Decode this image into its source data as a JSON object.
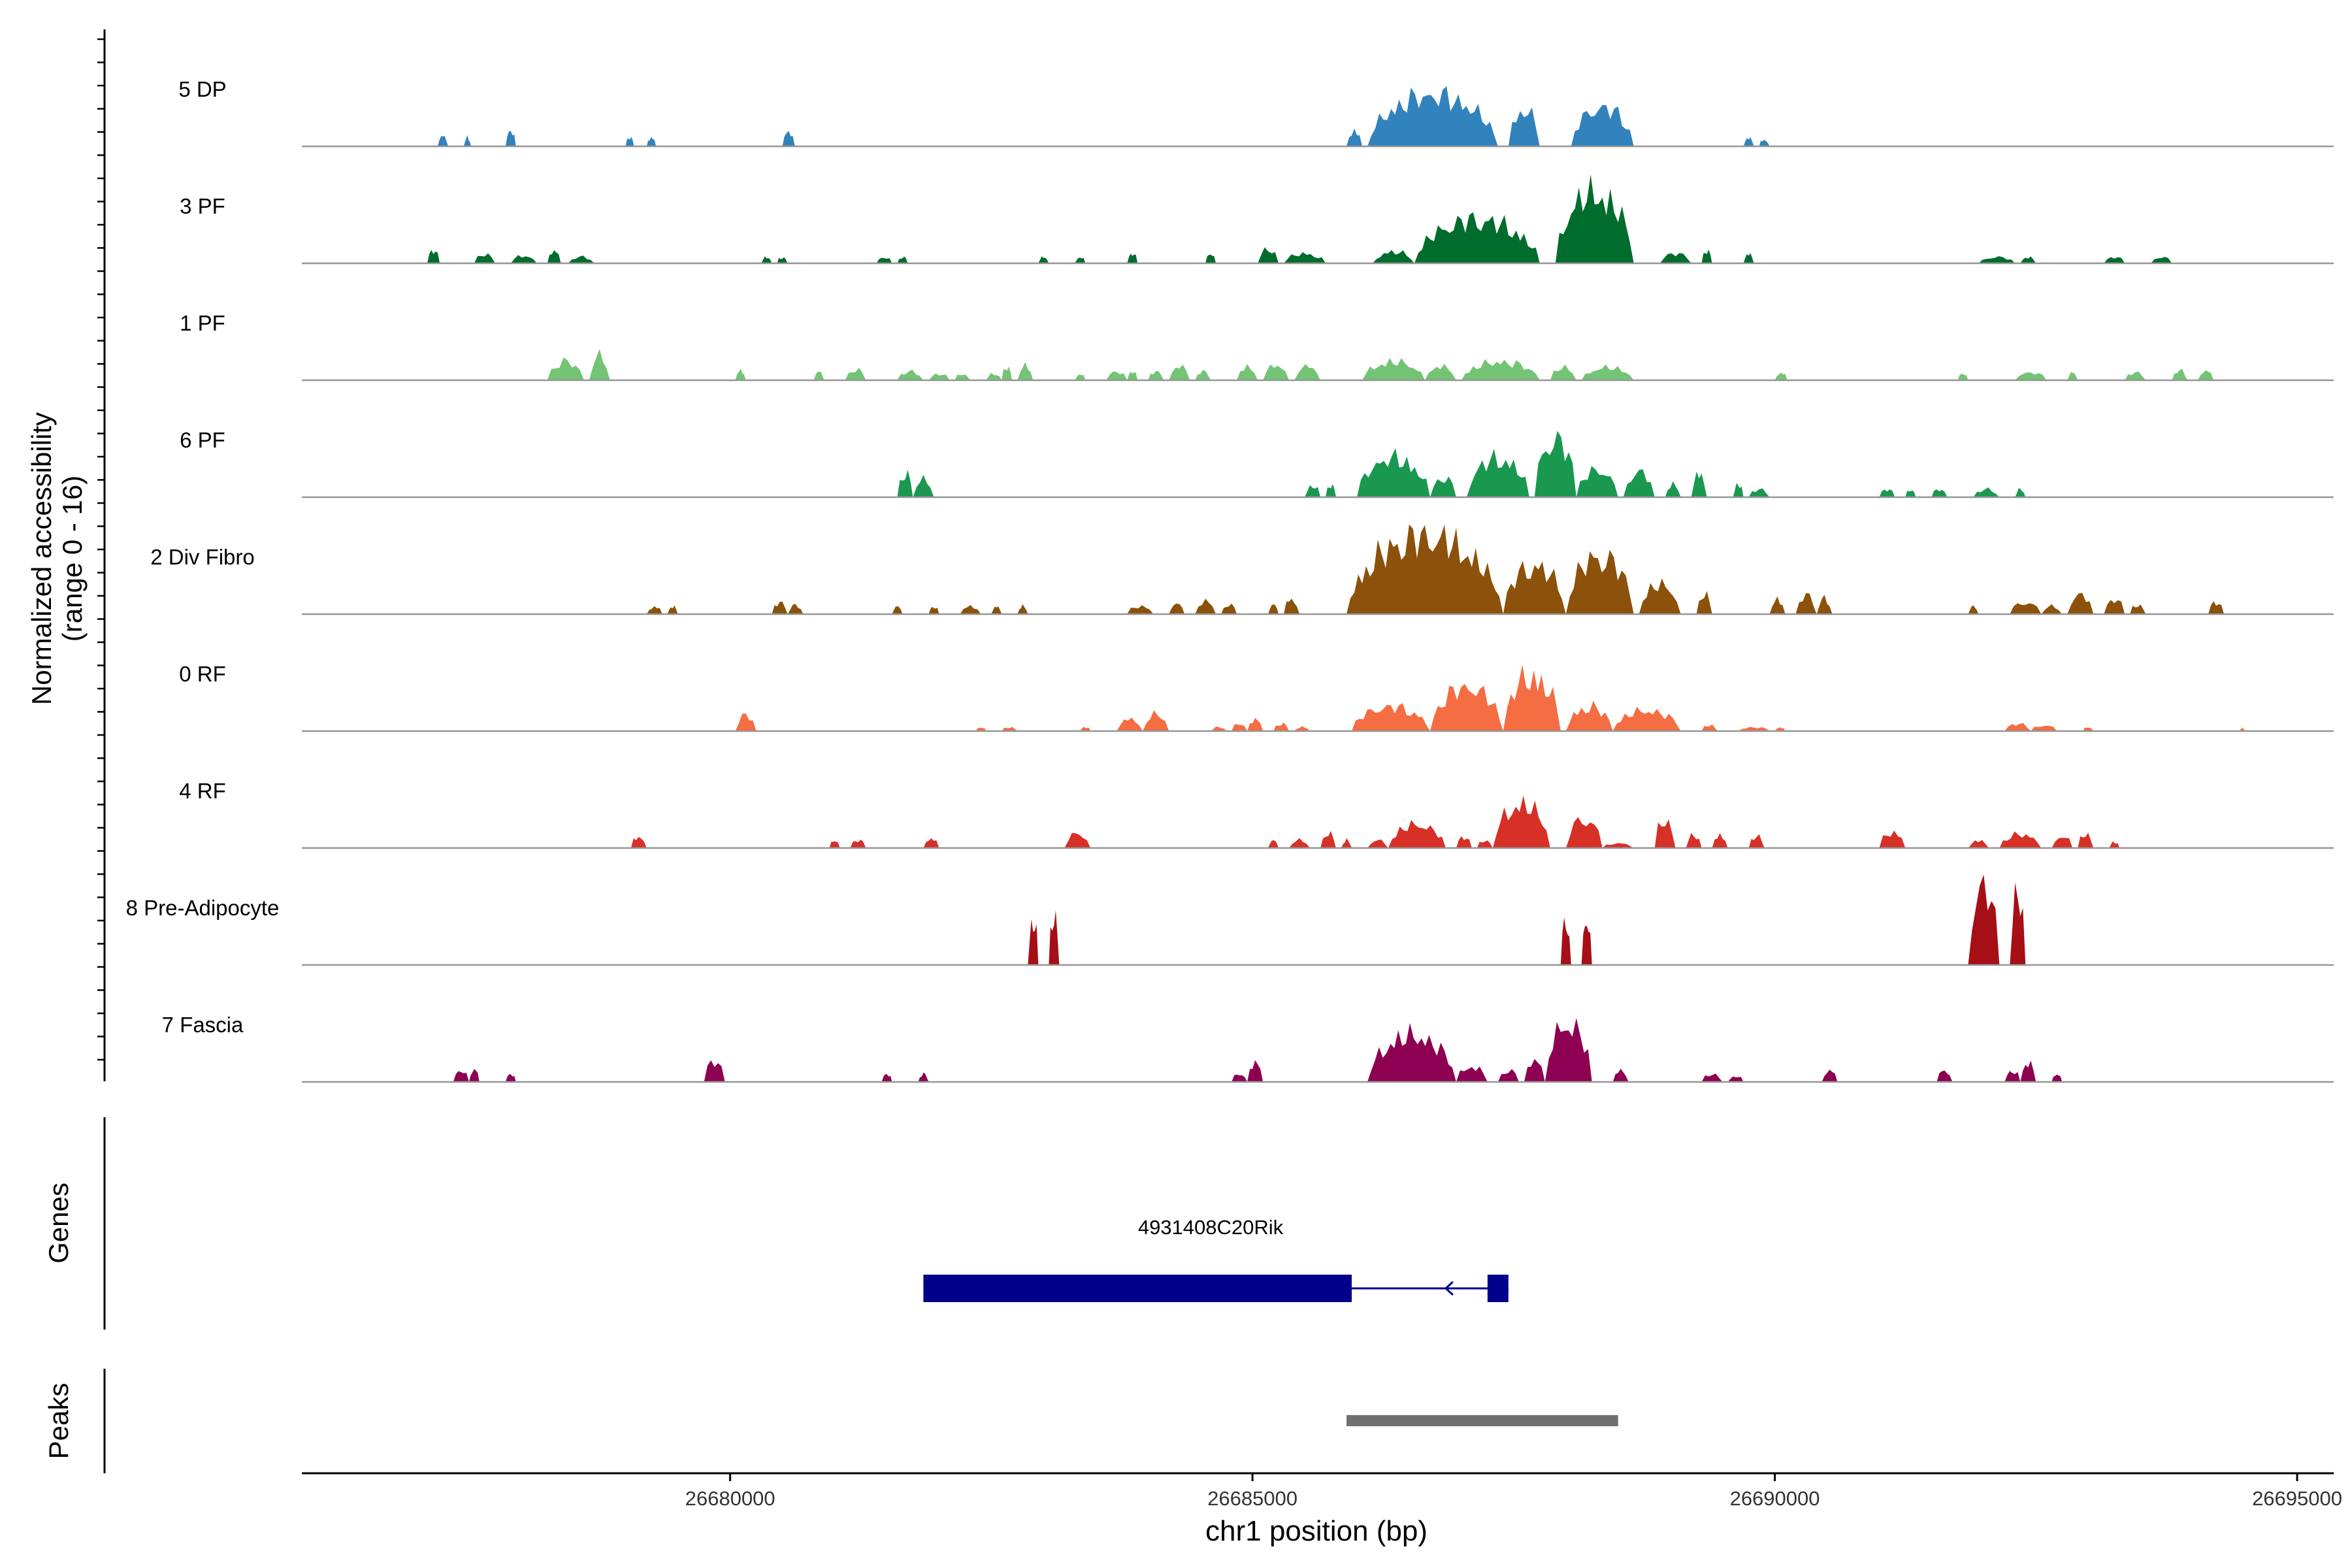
{
  "chart_data": {
    "type": "area",
    "panel_title_y": "Normalized accessibility",
    "panel_subtitle_y": "(range 0 - 16)",
    "ylim": [
      0,
      16
    ],
    "xlim": [
      26675900,
      26695350
    ],
    "xlabel": "chr1 position (bp)",
    "x_ticks": [
      26680000,
      26685000,
      26690000,
      26695000
    ],
    "x_tick_labels": [
      "26680000",
      "26685000",
      "26690000",
      "26695000"
    ],
    "tracks": [
      {
        "name": "5 DP",
        "color": "#3182bd",
        "peaks": [
          [
            26677200,
            26677300,
            2.2
          ],
          [
            26677450,
            26677520,
            1.8
          ],
          [
            26677850,
            26677950,
            3.2
          ],
          [
            26679000,
            26679080,
            1.8
          ],
          [
            26679200,
            26679290,
            1.8
          ],
          [
            26680500,
            26680620,
            3.0
          ],
          [
            26685900,
            26686050,
            3.2
          ],
          [
            26686100,
            26687350,
            10.5
          ],
          [
            26687450,
            26687750,
            7.5
          ],
          [
            26688050,
            26688650,
            8.0
          ],
          [
            26689700,
            26689800,
            1.8
          ],
          [
            26689850,
            26689950,
            1.4
          ]
        ]
      },
      {
        "name": "3 PF",
        "color": "#006d2c",
        "peaks": [
          [
            26677100,
            26677220,
            2.6
          ],
          [
            26677550,
            26677750,
            1.8
          ],
          [
            26677900,
            26678150,
            1.6
          ],
          [
            26678250,
            26678380,
            2.6
          ],
          [
            26678450,
            26678700,
            1.3
          ],
          [
            26680300,
            26680400,
            1.3
          ],
          [
            26680450,
            26680550,
            1.3
          ],
          [
            26681400,
            26681550,
            1.3
          ],
          [
            26681600,
            26681700,
            1.3
          ],
          [
            26682950,
            26683050,
            1.3
          ],
          [
            26683300,
            26683400,
            1.3
          ],
          [
            26683800,
            26683900,
            2.0
          ],
          [
            26684550,
            26684650,
            2.0
          ],
          [
            26685050,
            26685250,
            2.8
          ],
          [
            26685300,
            26685700,
            2.0
          ],
          [
            26686150,
            26686550,
            2.4
          ],
          [
            26686550,
            26687750,
            9.0
          ],
          [
            26687900,
            26688650,
            14.5
          ],
          [
            26688900,
            26689200,
            2.0
          ],
          [
            26689300,
            26689400,
            2.5
          ],
          [
            26689700,
            26689800,
            2.0
          ],
          [
            26691950,
            26692300,
            1.3
          ],
          [
            26692350,
            26692500,
            1.3
          ],
          [
            26693150,
            26693350,
            1.3
          ],
          [
            26693600,
            26693800,
            1.3
          ]
        ]
      },
      {
        "name": "1 PF",
        "color": "#74c476",
        "peaks": [
          [
            26678250,
            26678600,
            3.8
          ],
          [
            26678650,
            26678850,
            5.0
          ],
          [
            26680050,
            26680150,
            2.0
          ],
          [
            26680800,
            26680900,
            1.8
          ],
          [
            26681100,
            26681300,
            2.2
          ],
          [
            26681600,
            26681850,
            1.8
          ],
          [
            26681900,
            26682100,
            1.3
          ],
          [
            26682150,
            26682300,
            1.3
          ],
          [
            26682450,
            26682600,
            1.3
          ],
          [
            26682600,
            26682700,
            2.6
          ],
          [
            26682750,
            26682900,
            3.0
          ],
          [
            26683300,
            26683400,
            1.3
          ],
          [
            26683600,
            26683800,
            1.8
          ],
          [
            26683800,
            26683900,
            1.8
          ],
          [
            26684000,
            26684150,
            1.8
          ],
          [
            26684200,
            26684400,
            3.0
          ],
          [
            26684450,
            26684600,
            1.8
          ],
          [
            26684850,
            26685050,
            2.8
          ],
          [
            26685100,
            26685350,
            3.2
          ],
          [
            26685400,
            26685650,
            3.0
          ],
          [
            26686050,
            26686650,
            3.8
          ],
          [
            26686650,
            26686950,
            3.0
          ],
          [
            26687000,
            26687750,
            3.8
          ],
          [
            26687850,
            26688100,
            2.6
          ],
          [
            26688150,
            26688650,
            2.6
          ],
          [
            26690000,
            26690120,
            1.6
          ],
          [
            26691750,
            26691850,
            1.4
          ],
          [
            26692300,
            26692600,
            1.6
          ],
          [
            26692800,
            26692900,
            1.6
          ],
          [
            26693350,
            26693550,
            1.6
          ],
          [
            26693800,
            26693950,
            2.0
          ],
          [
            26694050,
            26694200,
            2.0
          ]
        ]
      },
      {
        "name": "6 PF",
        "color": "#1a9850",
        "peaks": [
          [
            26681600,
            26681750,
            4.8
          ],
          [
            26681750,
            26681950,
            3.6
          ],
          [
            26685500,
            26685650,
            2.4
          ],
          [
            26685700,
            26685800,
            2.4
          ],
          [
            26686000,
            26686700,
            8.0
          ],
          [
            26686700,
            26686950,
            4.0
          ],
          [
            26687050,
            26687650,
            8.0
          ],
          [
            26687700,
            26688100,
            12.0
          ],
          [
            26688100,
            26688500,
            5.5
          ],
          [
            26688550,
            26688850,
            5.2
          ],
          [
            26688950,
            26689100,
            2.6
          ],
          [
            26689200,
            26689350,
            5.0
          ],
          [
            26689600,
            26689700,
            2.6
          ],
          [
            26689750,
            26689950,
            1.6
          ],
          [
            26691000,
            26691150,
            1.6
          ],
          [
            26691250,
            26691350,
            1.6
          ],
          [
            26691500,
            26691650,
            1.6
          ],
          [
            26691900,
            26692150,
            1.6
          ],
          [
            26692300,
            26692400,
            1.6
          ]
        ]
      },
      {
        "name": "2 Div Fibro",
        "color": "#8c510a",
        "peaks": [
          [
            26679200,
            26679350,
            1.6
          ],
          [
            26679400,
            26679500,
            1.6
          ],
          [
            26680400,
            26680550,
            2.4
          ],
          [
            26680550,
            26680700,
            1.8
          ],
          [
            26681550,
            26681650,
            1.6
          ],
          [
            26681900,
            26682000,
            1.6
          ],
          [
            26682200,
            26682400,
            1.6
          ],
          [
            26682500,
            26682600,
            1.6
          ],
          [
            26682750,
            26682850,
            1.6
          ],
          [
            26683800,
            26684050,
            1.6
          ],
          [
            26684200,
            26684350,
            2.2
          ],
          [
            26684450,
            26684650,
            2.6
          ],
          [
            26684700,
            26684850,
            2.0
          ],
          [
            26685150,
            26685250,
            2.0
          ],
          [
            26685300,
            26685450,
            3.2
          ],
          [
            26685900,
            26687400,
            16.0
          ],
          [
            26687400,
            26688000,
            10.0
          ],
          [
            26688000,
            26688650,
            12.0
          ],
          [
            26688700,
            26689100,
            6.0
          ],
          [
            26689250,
            26689400,
            4.0
          ],
          [
            26689950,
            26690100,
            3.0
          ],
          [
            26690200,
            26690400,
            3.8
          ],
          [
            26690400,
            26690550,
            3.2
          ],
          [
            26691850,
            26691950,
            1.6
          ],
          [
            26692250,
            26692550,
            2.4
          ],
          [
            26692550,
            26692750,
            1.6
          ],
          [
            26692800,
            26693050,
            4.0
          ],
          [
            26693150,
            26693350,
            3.0
          ],
          [
            26693400,
            26693550,
            2.0
          ],
          [
            26694150,
            26694300,
            2.4
          ]
        ]
      },
      {
        "name": "0 RF",
        "color": "#f46d43",
        "peaks": [
          [
            26680050,
            26680250,
            3.2
          ],
          [
            26682350,
            26682450,
            0.8
          ],
          [
            26682600,
            26682750,
            0.8
          ],
          [
            26683350,
            26683450,
            0.8
          ],
          [
            26683700,
            26683950,
            2.6
          ],
          [
            26683950,
            26684200,
            3.4
          ],
          [
            26684600,
            26684750,
            0.8
          ],
          [
            26684800,
            26684950,
            1.5
          ],
          [
            26684950,
            26685100,
            2.4
          ],
          [
            26685200,
            26685350,
            1.5
          ],
          [
            26685400,
            26685550,
            0.8
          ],
          [
            26685950,
            26686700,
            5.0
          ],
          [
            26686700,
            26687400,
            9.0
          ],
          [
            26687400,
            26687950,
            11.5
          ],
          [
            26688000,
            26688450,
            5.0
          ],
          [
            26688450,
            26689100,
            4.2
          ],
          [
            26689300,
            26689450,
            1.2
          ],
          [
            26689650,
            26689950,
            0.8
          ],
          [
            26690000,
            26690100,
            0.8
          ],
          [
            26692200,
            26692450,
            1.5
          ],
          [
            26692450,
            26692700,
            1.2
          ],
          [
            26692950,
            26693050,
            0.8
          ],
          [
            26694450,
            26694500,
            0.6
          ]
        ]
      },
      {
        "name": "4 RF",
        "color": "#d73027",
        "peaks": [
          [
            26679050,
            26679200,
            2.4
          ],
          [
            26680950,
            26681050,
            1.6
          ],
          [
            26681150,
            26681300,
            1.6
          ],
          [
            26681850,
            26682000,
            2.0
          ],
          [
            26683200,
            26683450,
            3.0
          ],
          [
            26685150,
            26685250,
            1.6
          ],
          [
            26685350,
            26685550,
            1.6
          ],
          [
            26685650,
            26685800,
            3.0
          ],
          [
            26685850,
            26685950,
            1.6
          ],
          [
            26686100,
            26686300,
            1.6
          ],
          [
            26686300,
            26686850,
            4.8
          ],
          [
            26686950,
            26687100,
            2.2
          ],
          [
            26687150,
            26687300,
            1.6
          ],
          [
            26687300,
            26687850,
            9.0
          ],
          [
            26688000,
            26688350,
            6.0
          ],
          [
            26688350,
            26688650,
            1.0
          ],
          [
            26688850,
            26689050,
            6.0
          ],
          [
            26689150,
            26689300,
            2.6
          ],
          [
            26689400,
            26689550,
            2.6
          ],
          [
            26689750,
            26689900,
            2.4
          ],
          [
            26691000,
            26691250,
            3.2
          ],
          [
            26691850,
            26692050,
            1.6
          ],
          [
            26692150,
            26692550,
            2.8
          ],
          [
            26692650,
            26692850,
            2.4
          ],
          [
            26692900,
            26693050,
            2.8
          ],
          [
            26693200,
            26693300,
            1.2
          ]
        ]
      },
      {
        "name": "8 Pre-Adipocyte",
        "color": "#a50f15",
        "peaks": [
          [
            26682850,
            26682950,
            9.5
          ],
          [
            26683050,
            26683150,
            9.5
          ],
          [
            26687950,
            26688050,
            9.0
          ],
          [
            26688150,
            26688250,
            9.0
          ],
          [
            26691850,
            26692150,
            16.0
          ],
          [
            26692250,
            26692400,
            14.5
          ]
        ]
      },
      {
        "name": "7 Fascia",
        "color": "#8e0152",
        "peaks": [
          [
            26677350,
            26677500,
            2.4
          ],
          [
            26677500,
            26677600,
            2.6
          ],
          [
            26677850,
            26677950,
            1.6
          ],
          [
            26679750,
            26679950,
            4.2
          ],
          [
            26681450,
            26681550,
            1.6
          ],
          [
            26681800,
            26681900,
            1.6
          ],
          [
            26684800,
            26684950,
            1.6
          ],
          [
            26684950,
            26685100,
            4.0
          ],
          [
            26686100,
            26686950,
            9.5
          ],
          [
            26686950,
            26687250,
            3.2
          ],
          [
            26687350,
            26687550,
            2.4
          ],
          [
            26687600,
            26687800,
            4.5
          ],
          [
            26687800,
            26688250,
            12.0
          ],
          [
            26688450,
            26688600,
            2.4
          ],
          [
            26689300,
            26689500,
            1.6
          ],
          [
            26689550,
            26689700,
            1.2
          ],
          [
            26690450,
            26690600,
            2.4
          ],
          [
            26691550,
            26691700,
            2.4
          ],
          [
            26692200,
            26692350,
            2.4
          ],
          [
            26692350,
            26692500,
            4.0
          ],
          [
            26692650,
            26692750,
            1.6
          ]
        ]
      }
    ],
    "genes_title": "Genes",
    "gene": {
      "name": "4931408C20Rik",
      "start": 26681850,
      "end": 26687450,
      "strand": "-",
      "exons": [
        [
          26681850,
          26685950
        ],
        [
          26687250,
          26687450
        ]
      ]
    },
    "peaks_title": "Peaks",
    "peak_regions": [
      [
        26685900,
        26688500
      ]
    ],
    "colors": {
      "gene": "#00008b",
      "peak": "#707070",
      "baseline": "#969696"
    }
  }
}
